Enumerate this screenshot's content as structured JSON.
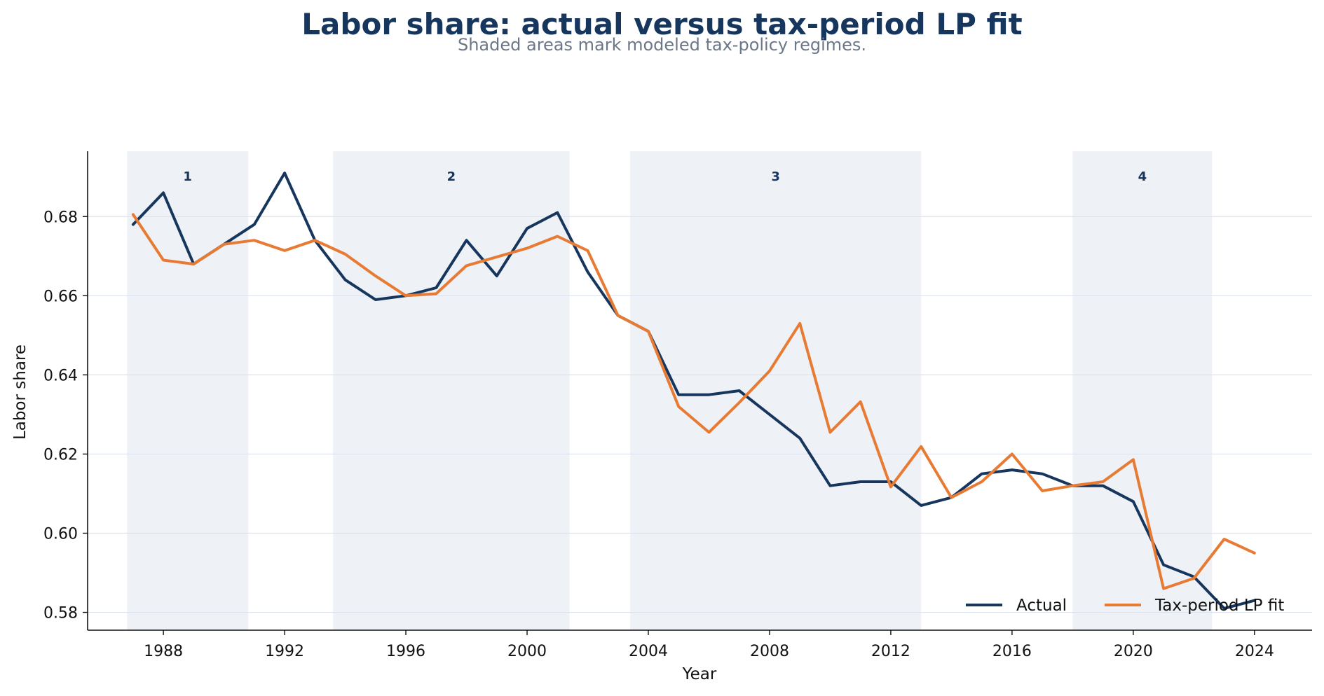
{
  "title": "Labor share: actual versus tax-period LP fit",
  "subtitle": "Shaded areas mark modeled tax-policy regimes.",
  "chart_data": {
    "type": "line",
    "xlabel": "Year",
    "ylabel": "Labor share",
    "xlim": [
      1985.5,
      2025.9
    ],
    "ylim": [
      0.5755,
      0.6965
    ],
    "x_ticks": [
      1988,
      1992,
      1996,
      2000,
      2004,
      2008,
      2012,
      2016,
      2020,
      2024
    ],
    "y_ticks": [
      0.58,
      0.6,
      0.62,
      0.64,
      0.66,
      0.68
    ],
    "grid": "horizontal",
    "legend_position": "bottom-right",
    "regimes": [
      {
        "label": "1",
        "start": 1986.8,
        "end": 1990.8
      },
      {
        "label": "2",
        "start": 1993.6,
        "end": 2001.4
      },
      {
        "label": "3",
        "start": 2003.4,
        "end": 2013.0
      },
      {
        "label": "4",
        "start": 2018.0,
        "end": 2022.6
      }
    ],
    "x": [
      1987,
      1988,
      1989,
      1990,
      1991,
      1992,
      1993,
      1994,
      1995,
      1996,
      1997,
      1998,
      1999,
      2000,
      2001,
      2002,
      2003,
      2004,
      2005,
      2006,
      2007,
      2008,
      2009,
      2010,
      2011,
      2012,
      2013,
      2014,
      2015,
      2016,
      2017,
      2018,
      2019,
      2020,
      2021,
      2022,
      2023,
      2024
    ],
    "series": [
      {
        "name": "Actual",
        "color": "#17365d",
        "values": [
          0.678,
          0.686,
          0.668,
          0.673,
          0.678,
          0.691,
          0.674,
          0.664,
          0.659,
          0.66,
          0.662,
          0.674,
          0.665,
          0.677,
          0.681,
          0.666,
          0.655,
          0.651,
          0.635,
          0.635,
          0.636,
          0.63,
          0.624,
          0.612,
          0.613,
          0.613,
          0.607,
          0.609,
          0.615,
          0.616,
          0.615,
          0.612,
          0.612,
          0.608,
          0.592,
          0.589,
          0.581,
          0.583
        ]
      },
      {
        "name": "Tax-period LP fit",
        "color": "#e87b34",
        "values": [
          0.6805,
          0.669,
          0.668,
          0.673,
          0.674,
          0.6714,
          0.674,
          0.6705,
          0.665,
          0.66,
          0.6605,
          0.6676,
          0.6698,
          0.672,
          0.675,
          0.6714,
          0.655,
          0.651,
          0.632,
          0.6255,
          0.633,
          0.641,
          0.653,
          0.6255,
          0.6332,
          0.6117,
          0.6219,
          0.609,
          0.613,
          0.62,
          0.6107,
          0.612,
          0.613,
          0.6186,
          0.586,
          0.5886,
          0.5985,
          0.595
        ]
      }
    ],
    "regime_shade_color": "#eef1f6",
    "regime_label_color": "#17365d"
  }
}
